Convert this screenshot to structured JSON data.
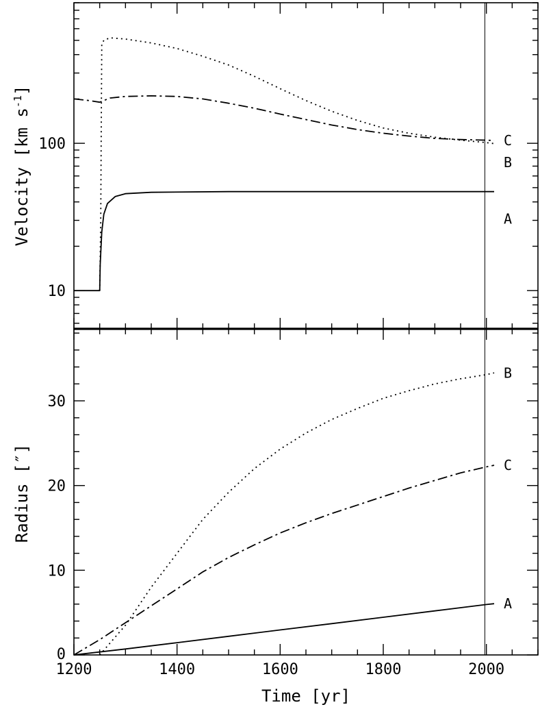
{
  "chart_data": [
    {
      "type": "line",
      "panel": "top",
      "ylabel": "Velocity  [km s",
      "ylabel_sup": "-1",
      "ylabel_close": "]",
      "yscale": "log",
      "xlim": [
        1200,
        2100
      ],
      "ylim": [
        5.5,
        900
      ],
      "ytick_labels": [
        "10",
        "100"
      ],
      "vline_x": 1997,
      "series": [
        {
          "id": "A",
          "label": "A",
          "style": "solid",
          "points": [
            [
              1200,
              10
            ],
            [
              1250,
              10
            ],
            [
              1251,
              15
            ],
            [
              1254,
              25
            ],
            [
              1258,
              33
            ],
            [
              1265,
              39
            ],
            [
              1280,
              43.5
            ],
            [
              1300,
              45.5
            ],
            [
              1350,
              46.5
            ],
            [
              1500,
              47
            ],
            [
              1700,
              47
            ],
            [
              2000,
              47
            ],
            [
              2015,
              47
            ]
          ]
        },
        {
          "id": "B",
          "label": "B",
          "style": "dotted",
          "points": [
            [
              1250,
              10
            ],
            [
              1252,
              30
            ],
            [
              1253,
              120
            ],
            [
              1254,
              470
            ],
            [
              1258,
              500
            ],
            [
              1270,
              520
            ],
            [
              1300,
              510
            ],
            [
              1350,
              480
            ],
            [
              1400,
              440
            ],
            [
              1450,
              390
            ],
            [
              1500,
              340
            ],
            [
              1550,
              285
            ],
            [
              1600,
              235
            ],
            [
              1650,
              195
            ],
            [
              1700,
              165
            ],
            [
              1750,
              143
            ],
            [
              1800,
              127
            ],
            [
              1850,
              117
            ],
            [
              1900,
              110
            ],
            [
              1950,
              105
            ],
            [
              2000,
              101
            ],
            [
              2015,
              99.5
            ]
          ]
        },
        {
          "id": "C",
          "label": "C",
          "style": "dash-dot",
          "points": [
            [
              1200,
              200
            ],
            [
              1230,
              195
            ],
            [
              1250,
              190
            ],
            [
              1270,
              203
            ],
            [
              1300,
              208
            ],
            [
              1350,
              210
            ],
            [
              1400,
              208
            ],
            [
              1450,
              200
            ],
            [
              1500,
              187
            ],
            [
              1550,
              173
            ],
            [
              1600,
              158
            ],
            [
              1650,
              145
            ],
            [
              1700,
              133
            ],
            [
              1750,
              124
            ],
            [
              1800,
              117
            ],
            [
              1850,
              112
            ],
            [
              1900,
              108
            ],
            [
              1950,
              106
            ],
            [
              2000,
              105
            ],
            [
              2015,
              104.5
            ]
          ]
        }
      ]
    },
    {
      "type": "line",
      "panel": "bottom",
      "xlabel": "Time  [yr]",
      "ylabel": "Radius  [″]",
      "xlim": [
        1200,
        2100
      ],
      "ylim": [
        0,
        38.5
      ],
      "xtick_labels": [
        "1200",
        "1400",
        "1600",
        "1800",
        "2000"
      ],
      "ytick_labels": [
        "0",
        "10",
        "20",
        "30"
      ],
      "vline_x": 1997,
      "series": [
        {
          "id": "A",
          "label": "A",
          "style": "solid",
          "points": [
            [
              1200,
              0
            ],
            [
              1300,
              0.7
            ],
            [
              1400,
              1.45
            ],
            [
              1500,
              2.2
            ],
            [
              1600,
              2.95
            ],
            [
              1700,
              3.7
            ],
            [
              1800,
              4.45
            ],
            [
              1900,
              5.2
            ],
            [
              2000,
              5.95
            ],
            [
              2015,
              6.05
            ]
          ]
        },
        {
          "id": "B",
          "label": "B",
          "style": "dotted",
          "points": [
            [
              1250,
              0
            ],
            [
              1300,
              3.5
            ],
            [
              1350,
              8
            ],
            [
              1400,
              12
            ],
            [
              1450,
              16
            ],
            [
              1500,
              19.2
            ],
            [
              1550,
              22
            ],
            [
              1600,
              24.3
            ],
            [
              1650,
              26.2
            ],
            [
              1700,
              27.8
            ],
            [
              1750,
              29.1
            ],
            [
              1800,
              30.3
            ],
            [
              1850,
              31.2
            ],
            [
              1900,
              32
            ],
            [
              1950,
              32.6
            ],
            [
              2000,
              33.1
            ],
            [
              2015,
              33.3
            ]
          ]
        },
        {
          "id": "C",
          "label": "C",
          "style": "dash-dot",
          "points": [
            [
              1200,
              0
            ],
            [
              1250,
              1.8
            ],
            [
              1300,
              3.8
            ],
            [
              1350,
              5.8
            ],
            [
              1400,
              7.8
            ],
            [
              1450,
              9.8
            ],
            [
              1500,
              11.5
            ],
            [
              1550,
              13
            ],
            [
              1600,
              14.4
            ],
            [
              1650,
              15.6
            ],
            [
              1700,
              16.7
            ],
            [
              1750,
              17.7
            ],
            [
              1800,
              18.7
            ],
            [
              1850,
              19.7
            ],
            [
              1900,
              20.6
            ],
            [
              1950,
              21.5
            ],
            [
              2000,
              22.2
            ],
            [
              2015,
              22.4
            ]
          ]
        }
      ]
    }
  ]
}
